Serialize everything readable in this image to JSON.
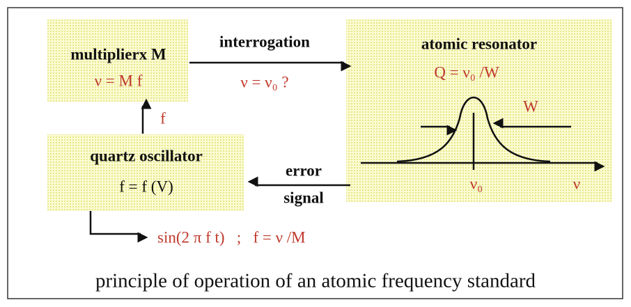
{
  "multiplier": {
    "title": "multiplierx M",
    "formula": "ν = M f"
  },
  "interrogation": {
    "label": "interrogation",
    "formula": "ν = ν₀ ?"
  },
  "resonator": {
    "title": "atomic resonator",
    "formula": "Q = ν₀ /W",
    "width_label": "W",
    "center_label": "ν₀",
    "axis_label": "ν"
  },
  "feedback": {
    "label": "f"
  },
  "oscillator": {
    "title": "quartz oscillator",
    "formula": "f = f (V)"
  },
  "error": {
    "line1": "error",
    "line2": "signal"
  },
  "output": {
    "formula": "sin(2 π f t)   ;   f = ν /M"
  },
  "caption": "principle of operation of an atomic frequency standard"
}
